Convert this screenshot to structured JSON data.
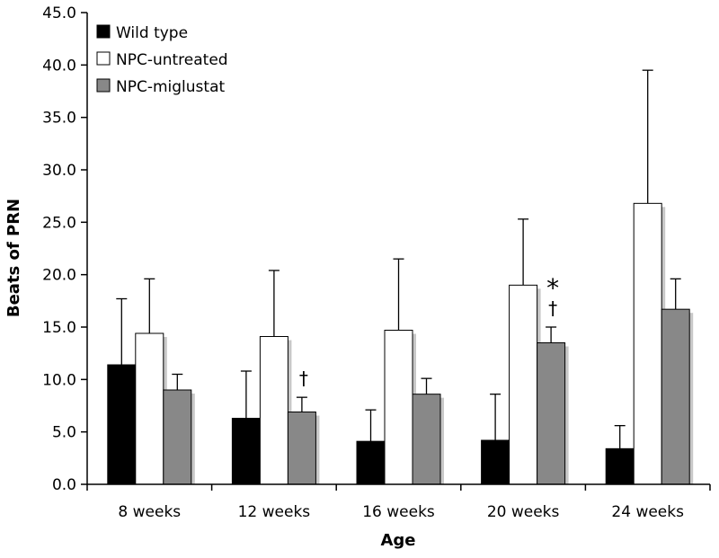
{
  "chart_data": {
    "type": "bar",
    "title": "",
    "xlabel": "Age",
    "ylabel": "Beats of PRN",
    "ylim": [
      0,
      45
    ],
    "ytick_step": 5,
    "ytick_labels": [
      "0.0",
      "5.0",
      "10.0",
      "15.0",
      "20.0",
      "25.0",
      "30.0",
      "35.0",
      "40.0",
      "45.0"
    ],
    "categories": [
      "8 weeks",
      "12 weeks",
      "16 weeks",
      "20 weeks",
      "24 weeks"
    ],
    "legend_position": "top-left",
    "series": [
      {
        "name": "Wild type",
        "color": "#000000",
        "values": [
          11.4,
          6.3,
          4.1,
          4.2,
          3.4
        ],
        "errors": [
          6.3,
          4.5,
          3.0,
          4.4,
          2.2
        ]
      },
      {
        "name": "NPC-untreated",
        "color": "#ffffff",
        "values": [
          14.4,
          14.1,
          14.7,
          19.0,
          26.8
        ],
        "errors": [
          5.2,
          6.3,
          6.8,
          6.3,
          12.7
        ]
      },
      {
        "name": "NPC-miglustat",
        "color": "#888888",
        "values": [
          9.0,
          6.9,
          8.6,
          13.5,
          16.7
        ],
        "errors": [
          1.5,
          1.4,
          1.5,
          1.5,
          2.9
        ]
      }
    ],
    "annotations": [
      {
        "category": 1,
        "series": 2,
        "text": "†"
      },
      {
        "category": 3,
        "series": 2,
        "text": "†"
      },
      {
        "category": 3,
        "series": 2,
        "text": "*"
      }
    ]
  }
}
